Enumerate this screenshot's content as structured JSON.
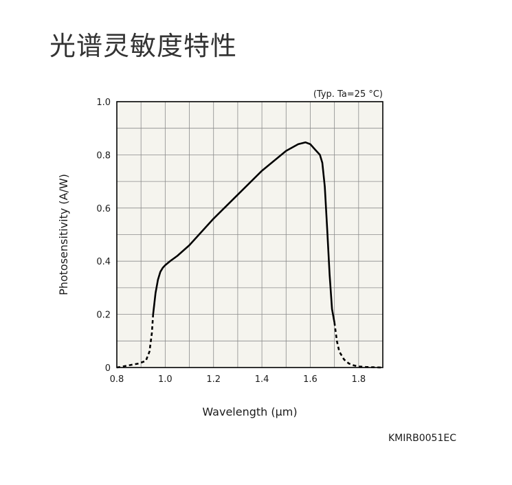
{
  "page": {
    "title": "光谱灵敏度特性",
    "product_code": "KMIRB0051EC"
  },
  "chart_data": {
    "type": "line",
    "title": "",
    "condition": "(Typ. Ta=25 °C)",
    "xlabel": "Wavelength (μm)",
    "ylabel": "Photosensitivity (A/W)",
    "xlim": [
      0.8,
      1.9
    ],
    "ylim": [
      0,
      1.0
    ],
    "x_ticks": [
      0.8,
      1.0,
      1.2,
      1.4,
      1.6,
      1.8
    ],
    "x_tick_labels": [
      "0.8",
      "1.0",
      "1.2",
      "1.4",
      "1.6",
      "1.8"
    ],
    "y_ticks": [
      0,
      0.2,
      0.4,
      0.6,
      0.8,
      1.0
    ],
    "y_tick_labels": [
      "0",
      "0.2",
      "0.4",
      "0.6",
      "0.8",
      "1.0"
    ],
    "x_minor_step": 0.1,
    "y_minor_step": 0.1,
    "grid": true,
    "background_color": "#f5f4ee",
    "grid_color": "#8a8a8a",
    "line_color": "#000000",
    "series": [
      {
        "style": "dashed",
        "x": [
          0.8,
          0.83,
          0.86,
          0.89,
          0.92,
          0.935,
          0.945,
          0.95
        ],
        "y": [
          0.0,
          0.005,
          0.01,
          0.015,
          0.025,
          0.06,
          0.13,
          0.2
        ]
      },
      {
        "style": "solid",
        "x": [
          0.95,
          0.96,
          0.97,
          0.98,
          0.99,
          1.0,
          1.02,
          1.05,
          1.1,
          1.15,
          1.2,
          1.3,
          1.4,
          1.5,
          1.55,
          1.58,
          1.6,
          1.62,
          1.64,
          1.65,
          1.66,
          1.67,
          1.68,
          1.69,
          1.7
        ],
        "y": [
          0.2,
          0.28,
          0.33,
          0.36,
          0.375,
          0.385,
          0.4,
          0.42,
          0.46,
          0.51,
          0.56,
          0.65,
          0.74,
          0.815,
          0.84,
          0.847,
          0.84,
          0.82,
          0.8,
          0.77,
          0.68,
          0.52,
          0.35,
          0.22,
          0.17
        ]
      },
      {
        "style": "dashed",
        "x": [
          1.7,
          1.71,
          1.72,
          1.74,
          1.76,
          1.78,
          1.8,
          1.83,
          1.86,
          1.9
        ],
        "y": [
          0.17,
          0.1,
          0.06,
          0.03,
          0.015,
          0.008,
          0.004,
          0.002,
          0.001,
          0.0
        ]
      }
    ]
  }
}
